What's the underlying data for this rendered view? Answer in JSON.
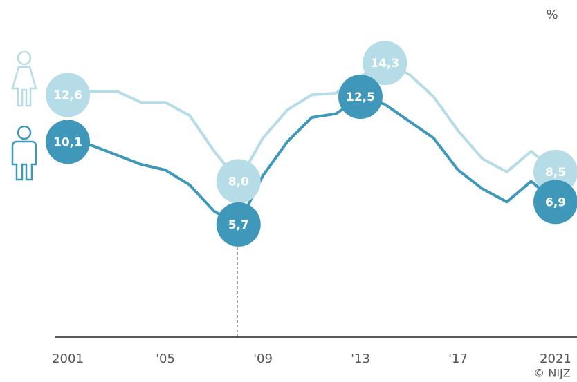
{
  "chart_data": {
    "type": "line",
    "unit": "%",
    "source": "© NIJZ",
    "x": [
      2001,
      2002,
      2003,
      2004,
      2005,
      2006,
      2007,
      2008,
      2009,
      2010,
      2011,
      2012,
      2013,
      2014,
      2015,
      2016,
      2017,
      2018,
      2019,
      2020,
      2021
    ],
    "xlim": [
      2001,
      2021
    ],
    "xticks": [
      {
        "value": 2001,
        "label": "2001"
      },
      {
        "value": 2005,
        "label": "'05"
      },
      {
        "value": 2009,
        "label": "'09"
      },
      {
        "value": 2013,
        "label": "'13"
      },
      {
        "value": 2017,
        "label": "'17"
      },
      {
        "value": 2021,
        "label": "2021"
      }
    ],
    "ylim": [
      -0.3,
      16
    ],
    "series": [
      {
        "color": "#b5dce7",
        "values": [
          12.6,
          12.8,
          12.8,
          12.2,
          12.2,
          11.5,
          9.6,
          8.0,
          10.3,
          11.8,
          12.6,
          12.7,
          13.6,
          14.3,
          13.7,
          12.5,
          10.7,
          9.2,
          8.5,
          9.6,
          8.5
        ],
        "value_labels": [
          "12,6",
          null,
          null,
          null,
          null,
          null,
          null,
          "8,0",
          null,
          null,
          null,
          null,
          null,
          "14,3",
          null,
          null,
          null,
          null,
          null,
          null,
          "8,5"
        ]
      },
      {
        "color": "#3f98ba",
        "values": [
          10.1,
          9.9,
          9.4,
          8.9,
          8.6,
          7.8,
          6.4,
          5.7,
          8.3,
          10.1,
          11.4,
          11.6,
          12.5,
          12.1,
          11.2,
          10.3,
          8.6,
          7.6,
          6.9,
          8.0,
          6.9
        ],
        "value_labels": [
          "10,1",
          null,
          null,
          null,
          null,
          null,
          null,
          "5,7",
          null,
          null,
          null,
          null,
          "12,5",
          null,
          null,
          null,
          null,
          null,
          null,
          null,
          "6,9"
        ]
      }
    ]
  }
}
